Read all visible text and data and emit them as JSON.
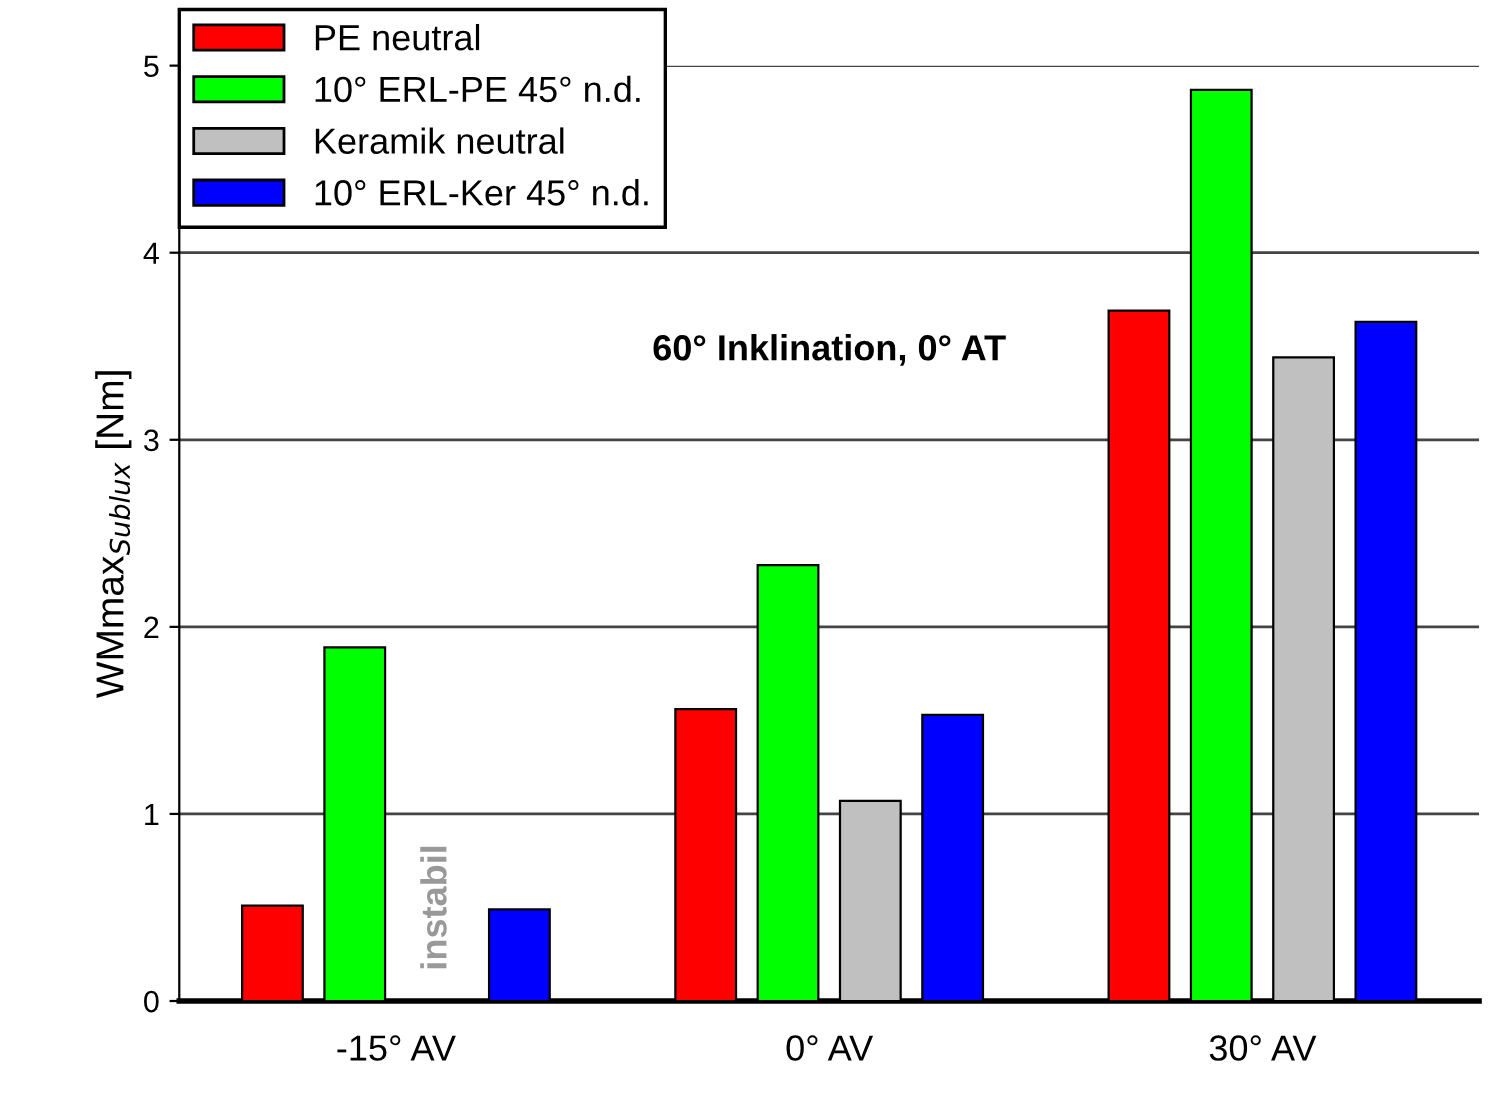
{
  "chart_data": {
    "type": "bar",
    "categories": [
      "-15° AV",
      "0° AV",
      "30° AV"
    ],
    "series": [
      {
        "name": "PE neutral",
        "color": "#ff0000",
        "values": [
          0.51,
          1.56,
          3.69
        ]
      },
      {
        "name": "10° ERL-PE 45° n.d.",
        "color": "#00ff00",
        "values": [
          1.89,
          2.33,
          4.87
        ]
      },
      {
        "name": "Keramik neutral",
        "color": "#c0c0c0",
        "values": [
          null,
          1.07,
          3.44
        ]
      },
      {
        "name": "10° ERL-Ker 45° n.d.",
        "color": "#0000ff",
        "values": [
          0.49,
          1.53,
          3.63
        ]
      }
    ],
    "ylabel": "WMmax$_{Sublux}$ [Nm]",
    "ylim": [
      0,
      5
    ],
    "yticks": [
      0,
      1,
      2,
      3,
      4,
      5
    ],
    "annotations": [
      "60° Inklination, 0° AT",
      "instabil"
    ],
    "grid": "y",
    "legend": "top left"
  }
}
